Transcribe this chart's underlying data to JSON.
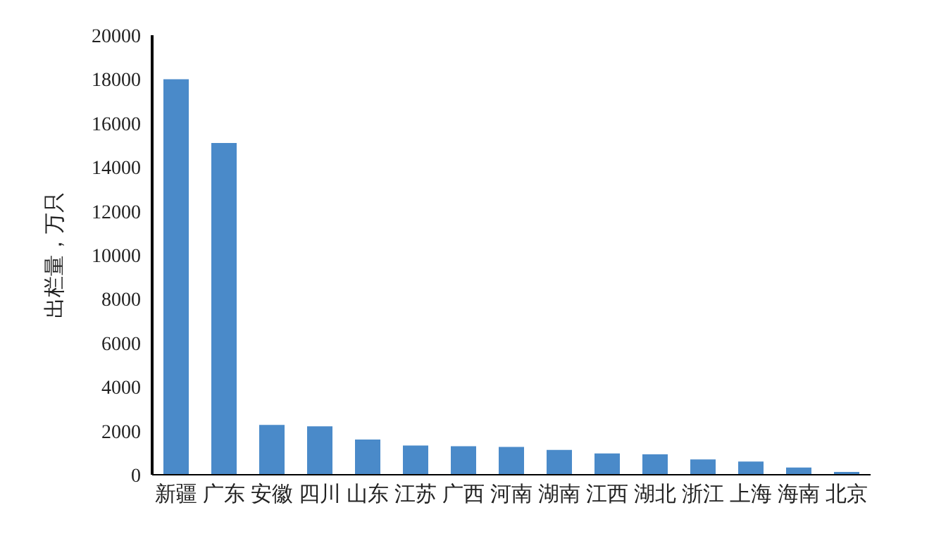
{
  "chart_data": {
    "type": "bar",
    "ylabel": "出栏量，万只",
    "categories": [
      "新疆",
      "广东",
      "安徽",
      "四川",
      "山东",
      "江苏",
      "广西",
      "河南",
      "湖南",
      "江西",
      "湖北",
      "浙江",
      "上海",
      "海南",
      "北京"
    ],
    "values": [
      18000,
      15100,
      2270,
      2200,
      1600,
      1330,
      1300,
      1270,
      1130,
      970,
      930,
      700,
      600,
      330,
      130
    ],
    "color": "#4a8ac9",
    "ylim": [
      0,
      20000
    ],
    "yticks": [
      0,
      2000,
      4000,
      6000,
      8000,
      10000,
      12000,
      14000,
      16000,
      18000,
      20000
    ],
    "grid": false
  }
}
